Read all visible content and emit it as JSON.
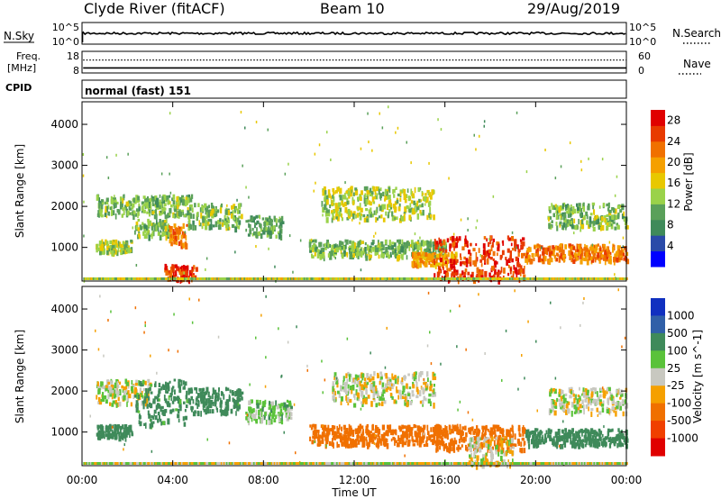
{
  "header": {
    "title": "Clyde River (fitACF)",
    "beam": "Beam 10",
    "date": "29/Aug/2019"
  },
  "strips": {
    "nsky_label": "N.Sky",
    "nsky_ticks": [
      "10^5",
      "10^0"
    ],
    "nsearch_label": "N.Search",
    "freq_label_line1": "Freq.",
    "freq_label_line2": "[MHz]",
    "freq_ticks": [
      "18",
      "8"
    ],
    "nave_label": "Nave",
    "nave_ticks": [
      "60",
      "0"
    ],
    "cpid_label": "CPID",
    "cpid_value": "normal (fast) 151"
  },
  "colors": {
    "power_scale": [
      "#0000ff",
      "#2a4aa8",
      "#3f8a5a",
      "#5aa05a",
      "#9ad24a",
      "#e8c800",
      "#f5a000",
      "#f07000",
      "#e83a00",
      "#e00000"
    ],
    "velocity_scale": [
      "#e00000",
      "#f04000",
      "#f07000",
      "#f5a000",
      "#e8c800",
      "#c8c8c0",
      "#c8c8c0",
      "#5ac23a",
      "#3f8a5a",
      "#3060a8",
      "#1030c0"
    ],
    "ground_scatter": "#b0b0b0"
  },
  "chart_data": [
    {
      "type": "line",
      "panel": "N.Sky / N.Search",
      "x_range_hours": [
        0,
        24
      ],
      "ylim": [
        "10^0",
        "10^5"
      ],
      "note_series": [
        "N.Sky",
        "N.Search"
      ]
    },
    {
      "type": "line",
      "panel": "Freq. / Nave",
      "x_range_hours": [
        0,
        24
      ],
      "freq_ylim_mhz": [
        8,
        18
      ],
      "nave_ylim": [
        0,
        60
      ],
      "series": [
        {
          "name": "Freq.",
          "values_mhz": [
            10.3
          ]
        },
        {
          "name": "Nave",
          "values": [
            36
          ]
        }
      ]
    },
    {
      "type": "heatmap",
      "panel": "power",
      "ylabel": "Slant Range [km]",
      "xlabel": "Time UT",
      "x_ticks": [
        "00:00",
        "04:00",
        "08:00",
        "12:00",
        "16:00",
        "20:00",
        "00:00"
      ],
      "x_range_hours": [
        0,
        24
      ],
      "y_ticks": [
        1000,
        2000,
        3000,
        4000
      ],
      "ylim": [
        180,
        4550
      ],
      "colorbar_label": "Power [dB]",
      "colorbar_ticks": [
        4,
        8,
        12,
        16,
        20,
        24,
        28
      ],
      "colorbar_range": [
        0,
        30
      ],
      "regions": [
        {
          "t": [
            0.6,
            4.8
          ],
          "r": [
            1800,
            2300
          ],
          "level": 12
        },
        {
          "t": [
            0.6,
            2.2
          ],
          "r": [
            900,
            1200
          ],
          "level": 14
        },
        {
          "t": [
            2.3,
            3.8
          ],
          "r": [
            1300,
            1700
          ],
          "level": 12
        },
        {
          "t": [
            3.8,
            4.6
          ],
          "r": [
            1100,
            1600
          ],
          "level": 22
        },
        {
          "t": [
            4.6,
            7.0
          ],
          "r": [
            1500,
            2100
          ],
          "level": 12
        },
        {
          "t": [
            7.2,
            8.8
          ],
          "r": [
            1300,
            1800
          ],
          "level": 10
        },
        {
          "t": [
            3.6,
            5.0
          ],
          "r": [
            250,
            600
          ],
          "level": 26
        },
        {
          "t": [
            10.5,
            15.5
          ],
          "r": [
            1700,
            2500
          ],
          "level": 14
        },
        {
          "t": [
            10.0,
            16.0
          ],
          "r": [
            800,
            1200
          ],
          "level": 12
        },
        {
          "t": [
            14.5,
            16.5
          ],
          "r": [
            600,
            900
          ],
          "level": 20
        },
        {
          "t": [
            15.5,
            19.5
          ],
          "r": [
            200,
            1300
          ],
          "level": 26
        },
        {
          "t": [
            19.5,
            24.0
          ],
          "r": [
            700,
            1100
          ],
          "level": 22
        },
        {
          "t": [
            20.5,
            24.0
          ],
          "r": [
            1500,
            2100
          ],
          "level": 12
        }
      ]
    },
    {
      "type": "heatmap",
      "panel": "velocity",
      "ylabel": "Slant Range [km]",
      "xlabel": "Time UT",
      "x_ticks": [
        "00:00",
        "04:00",
        "08:00",
        "12:00",
        "16:00",
        "20:00",
        "00:00"
      ],
      "x_range_hours": [
        0,
        24
      ],
      "y_ticks": [
        1000,
        2000,
        3000,
        4000
      ],
      "ylim": [
        180,
        4550
      ],
      "colorbar_label": "Velocity [m s^-1]",
      "colorbar_ticks": [
        1000,
        500,
        100,
        25,
        -25,
        -100,
        -500,
        -1000
      ],
      "regions": [
        {
          "t": [
            0.6,
            3.0
          ],
          "r": [
            1700,
            2300
          ],
          "vel": 0
        },
        {
          "t": [
            0.6,
            2.2
          ],
          "r": [
            900,
            1200
          ],
          "vel": 200
        },
        {
          "t": [
            2.3,
            4.6
          ],
          "r": [
            1200,
            2300
          ],
          "vel": 150
        },
        {
          "t": [
            4.6,
            7.0
          ],
          "r": [
            1500,
            2100
          ],
          "vel": 200
        },
        {
          "t": [
            7.2,
            9.2
          ],
          "r": [
            1300,
            1800
          ],
          "vel": 50
        },
        {
          "t": [
            11.0,
            15.5
          ],
          "r": [
            1700,
            2500
          ],
          "vel": 0
        },
        {
          "t": [
            10.0,
            16.0
          ],
          "r": [
            700,
            1200
          ],
          "vel": -300
        },
        {
          "t": [
            15.5,
            19.5
          ],
          "r": [
            600,
            1200
          ],
          "vel": -400
        },
        {
          "t": [
            17.0,
            19.0
          ],
          "r": [
            200,
            900
          ],
          "vel": 0
        },
        {
          "t": [
            19.5,
            24.0
          ],
          "r": [
            700,
            1100
          ],
          "vel": 300
        },
        {
          "t": [
            20.5,
            24.0
          ],
          "r": [
            1500,
            2100
          ],
          "vel": 0
        }
      ]
    }
  ]
}
